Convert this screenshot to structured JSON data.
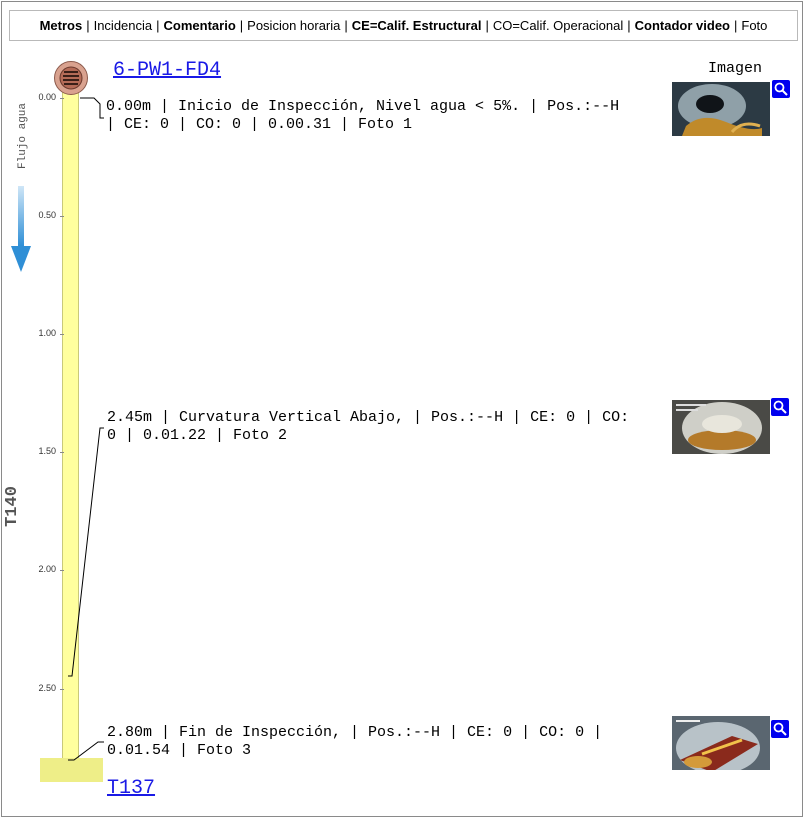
{
  "legend": {
    "metros": "Metros",
    "incidencia": "Incidencia",
    "comentario": "Comentario",
    "posicion": "Posicion horaria",
    "ce": "CE=Calif. Estructural",
    "co": "CO=Calif. Operacional",
    "contador": "Contador video",
    "foto": "Foto",
    "separator": "|"
  },
  "start_node": "6-PW1-FD4",
  "end_node": "T137",
  "section_label": "T140",
  "flow_label": "Flujo agua",
  "image_column_title": "Imagen",
  "scale_ticks": [
    "0.00",
    "0.50",
    "1.00",
    "1.50",
    "2.00",
    "2.50"
  ],
  "events": [
    {
      "line1": "0.00m | Inicio de Inspección, Nivel agua < 5%. | Pos.:--H",
      "line2": "| CE: 0 | CO: 0 | 0.00.31 | Foto 1"
    },
    {
      "line1": "2.45m | Curvatura Vertical Abajo, | Pos.:--H | CE: 0 | CO:",
      "line2": "0 | 0.01.22 | Foto 2"
    },
    {
      "line1": "2.80m | Fin de Inspección, | Pos.:--H | CE: 0 | CO: 0 |",
      "line2": "0.01.54 | Foto 3"
    }
  ],
  "colors": {
    "pipe": "#ffff9e",
    "link": "#1a1ae6",
    "zoom_button": "#0000ee",
    "flow_arrow": "#2f8fd6"
  },
  "icons": [
    "manhole-icon",
    "flow-arrow-icon",
    "zoom-icon"
  ]
}
